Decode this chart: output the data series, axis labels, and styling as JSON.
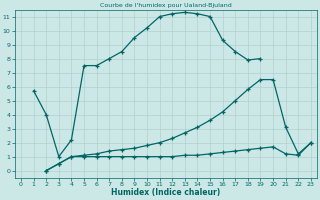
{
  "title": "Courbe de l'humidex pour Ualand-Bjuland",
  "xlabel": "Humidex (Indice chaleur)",
  "xlim": [
    -0.5,
    23.5
  ],
  "ylim": [
    -0.5,
    11.5
  ],
  "xticks": [
    0,
    1,
    2,
    3,
    4,
    5,
    6,
    7,
    8,
    9,
    10,
    11,
    12,
    13,
    14,
    15,
    16,
    17,
    18,
    19,
    20,
    21,
    22,
    23
  ],
  "yticks": [
    0,
    1,
    2,
    3,
    4,
    5,
    6,
    7,
    8,
    9,
    10,
    11
  ],
  "bg_color": "#cce8e6",
  "grid_color": "#b0d0ce",
  "line_color": "#006666",
  "curve1_x": [
    1,
    2,
    3,
    4,
    5,
    6,
    7,
    8,
    9,
    10,
    11,
    12,
    13,
    14,
    15,
    16,
    17,
    18,
    19
  ],
  "curve1_y": [
    5.7,
    4.0,
    1.0,
    2.2,
    7.5,
    7.5,
    8.0,
    8.5,
    9.5,
    10.2,
    11.0,
    11.2,
    11.3,
    11.2,
    11.0,
    9.3,
    8.5,
    7.9,
    8.0
  ],
  "curve2_x": [
    2,
    3,
    4,
    5,
    6,
    7,
    8,
    9,
    10,
    11,
    12,
    13,
    14,
    15,
    16,
    17,
    18,
    19,
    20,
    21,
    22,
    23
  ],
  "curve2_y": [
    0.0,
    0.5,
    1.0,
    1.1,
    1.2,
    1.4,
    1.5,
    1.6,
    1.8,
    2.0,
    2.3,
    2.7,
    3.1,
    3.6,
    4.2,
    5.0,
    5.8,
    6.5,
    6.5,
    3.1,
    1.2,
    2.0
  ],
  "curve3_x": [
    2,
    3,
    4,
    5,
    6,
    7,
    8,
    9,
    10,
    11,
    12,
    13,
    14,
    15,
    16,
    17,
    18,
    19,
    20,
    21,
    22,
    23
  ],
  "curve3_y": [
    0.0,
    0.5,
    1.0,
    1.0,
    1.0,
    1.0,
    1.0,
    1.0,
    1.0,
    1.0,
    1.0,
    1.1,
    1.1,
    1.2,
    1.3,
    1.4,
    1.5,
    1.6,
    1.7,
    1.2,
    1.1,
    2.0
  ]
}
